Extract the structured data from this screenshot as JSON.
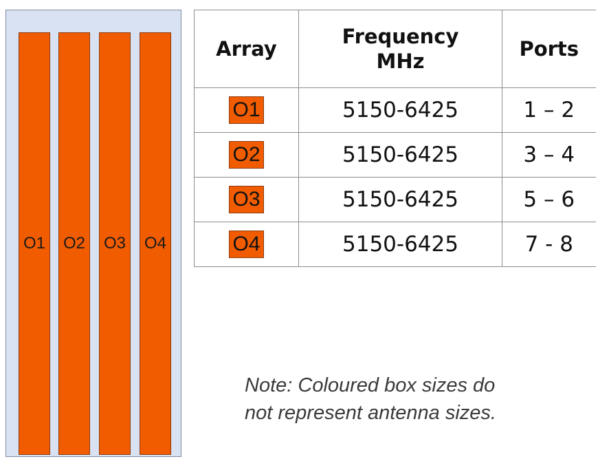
{
  "colors": {
    "array_fill": "#f25c00",
    "panel_fill": "#d9e2f2"
  },
  "panel": {
    "arrays": [
      "O1",
      "O2",
      "O3",
      "O4"
    ]
  },
  "table": {
    "headers": {
      "array": "Array",
      "frequency_line1": "Frequency",
      "frequency_line2": "MHz",
      "ports": "Ports"
    },
    "rows": [
      {
        "array": "O1",
        "frequency": "5150-6425",
        "ports": "1 – 2"
      },
      {
        "array": "O2",
        "frequency": "5150-6425",
        "ports": "3 – 4"
      },
      {
        "array": "O3",
        "frequency": "5150-6425",
        "ports": "5 – 6"
      },
      {
        "array": "O4",
        "frequency": "5150-6425",
        "ports": "7 - 8"
      }
    ]
  },
  "note": {
    "line1": "Note: Coloured box sizes do",
    "line2": "not represent antenna sizes."
  }
}
